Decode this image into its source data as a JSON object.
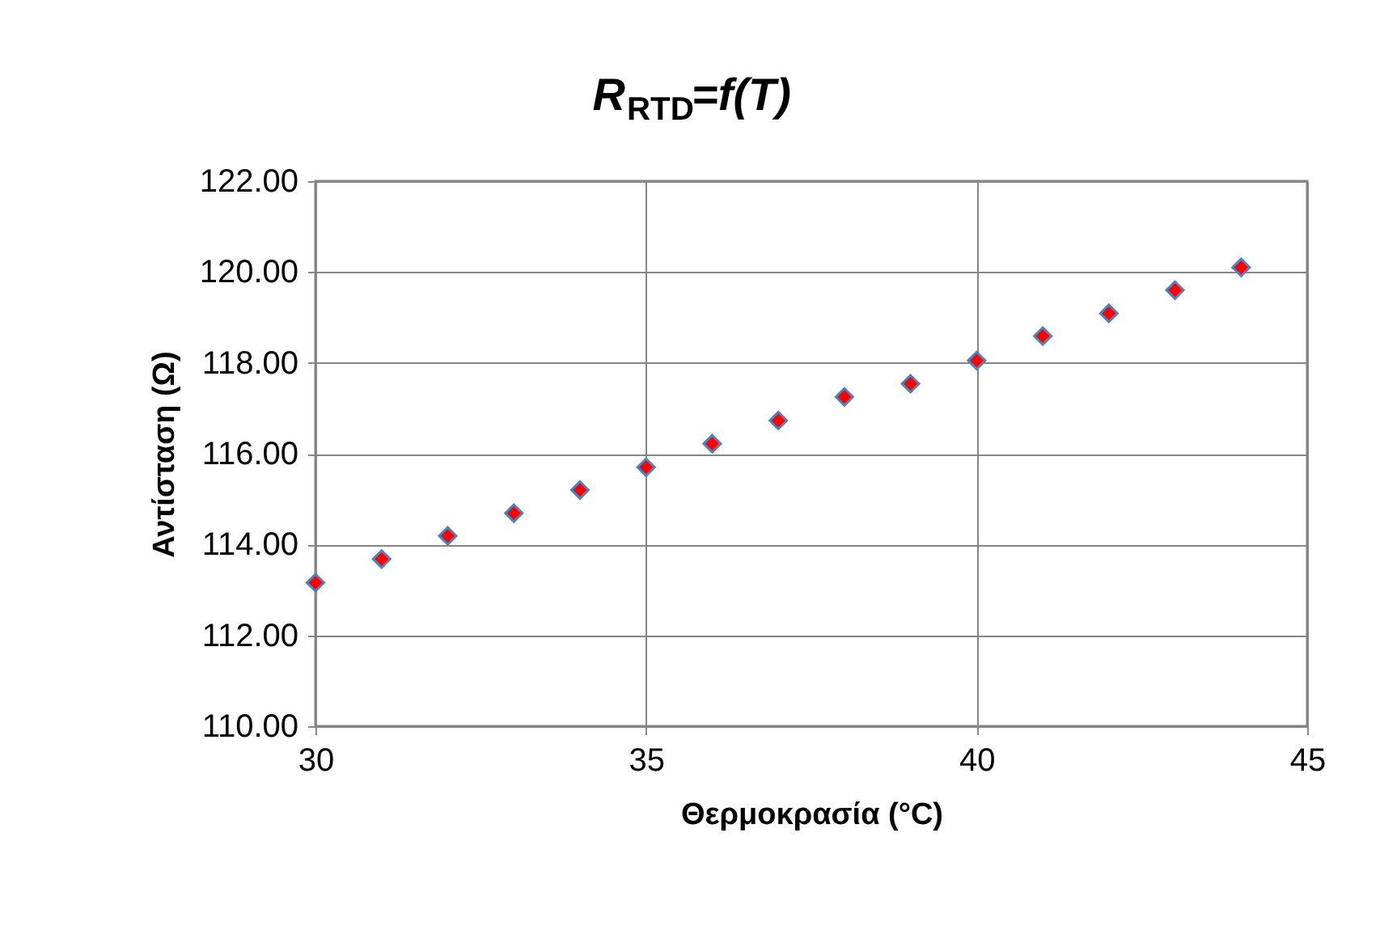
{
  "chart_data": {
    "type": "scatter",
    "title": "R$_{RTD}$=f(T)",
    "xlabel": "Θερμοκρασία (°C)",
    "ylabel": "Αντίσταση (Ω)",
    "x": [
      30,
      31,
      32,
      33,
      34,
      35,
      36,
      37,
      38,
      39,
      40,
      41,
      42,
      43,
      44
    ],
    "series": [
      {
        "color": "#ff0000",
        "values": [
          113.16,
          113.68,
          114.19,
          114.69,
          115.2,
          115.7,
          116.22,
          116.73,
          117.25,
          117.54,
          118.05,
          118.59,
          119.09,
          119.6,
          120.1
        ]
      }
    ],
    "xlim": [
      30,
      45
    ],
    "xticks": [
      30,
      35,
      40,
      45
    ],
    "ylim": [
      110,
      122
    ],
    "yticks": [
      {
        "value": 110,
        "label": "110.00"
      },
      {
        "value": 112,
        "label": "112.00"
      },
      {
        "value": 114,
        "label": "114.00"
      },
      {
        "value": 116,
        "label": "116.00"
      },
      {
        "value": 118,
        "label": "118.00"
      },
      {
        "value": 120,
        "label": "120.00"
      },
      {
        "value": 122,
        "label": "122.00"
      }
    ],
    "grid": true,
    "marker": "diamond"
  }
}
